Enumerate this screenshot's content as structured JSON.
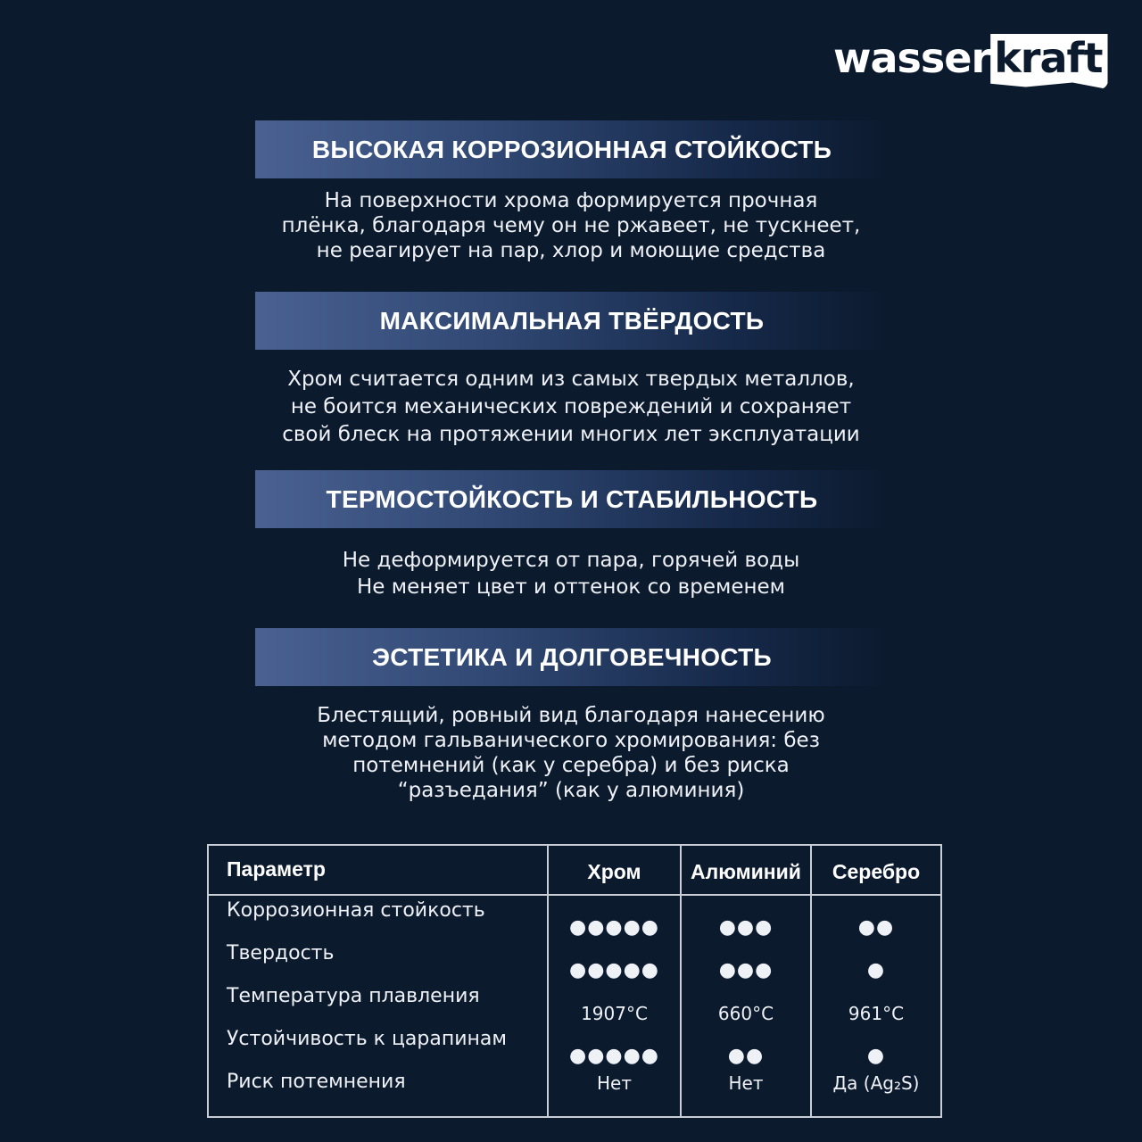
{
  "brand": {
    "logo_part1": "wasser",
    "logo_part2": "kraft"
  },
  "sections": [
    {
      "title": "ВЫСОКАЯ КОРРОЗИОННАЯ СТОЙКОСТЬ",
      "lines": [
        "На поверхности хрома формируется прочная",
        "плёнка, благодаря чему он не ржавеет, не тускнеет,",
        "не реагирует на пар, хлор и моющие средства"
      ]
    },
    {
      "title": "МАКСИМАЛЬНАЯ ТВЁРДОСТЬ",
      "lines": [
        "Хром считается одним из самых твердых металлов,",
        "не боится механических повреждений и сохраняет",
        "свой блеск на протяжении многих лет эксплуатации"
      ]
    },
    {
      "title": "ТЕРМОСТОЙКОСТЬ И СТАБИЛЬНОСТЬ",
      "lines": [
        "Не деформируется от пара, горячей воды",
        "Не меняет цвет и оттенок со временем"
      ]
    },
    {
      "title": "ЭСТЕТИКА И ДОЛГОВЕЧНОСТЬ",
      "lines": [
        "Блестящий, ровный вид благодаря нанесению",
        "методом гальванического хромирования: без",
        "потемнений (как у серебра) и без риска",
        "“разъедания” (как у алюминия)"
      ]
    }
  ],
  "table": {
    "headers": [
      "Параметр",
      "Хром",
      "Алюминий",
      "Серебро"
    ],
    "rows": [
      {
        "param": "Коррозионная стойкость",
        "values": [
          "●●●●●",
          "●●●",
          "●●"
        ]
      },
      {
        "param": "Твердость",
        "values": [
          "●●●●●",
          "●●●",
          "●"
        ]
      },
      {
        "param": "Температура плавления",
        "values": [
          "1907°C",
          "660°C",
          "961°C"
        ]
      },
      {
        "param": "Устойчивость к царапинам",
        "values": [
          "●●●●●",
          "●●",
          "●"
        ]
      },
      {
        "param": "Риск потемнения",
        "values": [
          "Нет",
          "Нет",
          "Да (Ag₂S)"
        ]
      }
    ]
  }
}
